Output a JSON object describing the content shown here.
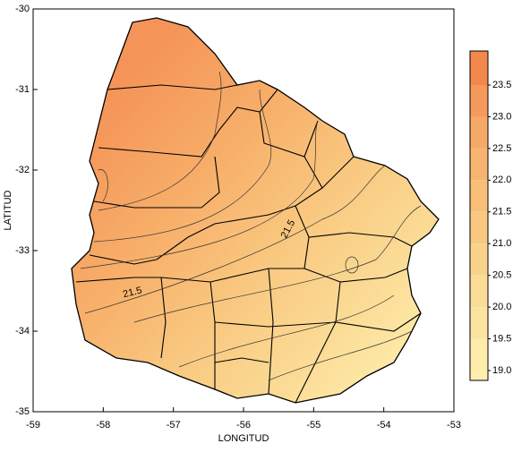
{
  "map": {
    "x_axis": {
      "label": "LONGITUD",
      "lim": [
        -59,
        -53
      ],
      "ticks": [
        -59,
        -58,
        -57,
        -56,
        -55,
        -54,
        -53
      ]
    },
    "y_axis": {
      "label": "LATITUD",
      "lim": [
        -30,
        -35
      ],
      "ticks": [
        -30,
        -31,
        -32,
        -33,
        -34,
        -35
      ]
    },
    "colorbar": {
      "levels": [
        {
          "value": 23.5,
          "label": "23.5"
        },
        {
          "value": 23,
          "label": "23.0"
        },
        {
          "value": 22.5,
          "label": "22.5"
        },
        {
          "value": 22,
          "label": "22.0"
        },
        {
          "value": 21.5,
          "label": "21.5"
        },
        {
          "value": 21,
          "label": "21.0"
        },
        {
          "value": 20.5,
          "label": "20.5"
        },
        {
          "value": 20,
          "label": "20.0"
        },
        {
          "value": 19.5,
          "label": "19.5"
        },
        {
          "value": 19,
          "label": "19.0"
        }
      ],
      "colors": [
        "#f3874c",
        "#f59a5c",
        "#f6a966",
        "#f7b470",
        "#f8bf79",
        "#f9c982",
        "#fad38b",
        "#fbdc96",
        "#fce4a0",
        "#fdecaa",
        "#feefb0"
      ]
    },
    "contour_labels": [
      "21.5",
      "21.5"
    ]
  }
}
